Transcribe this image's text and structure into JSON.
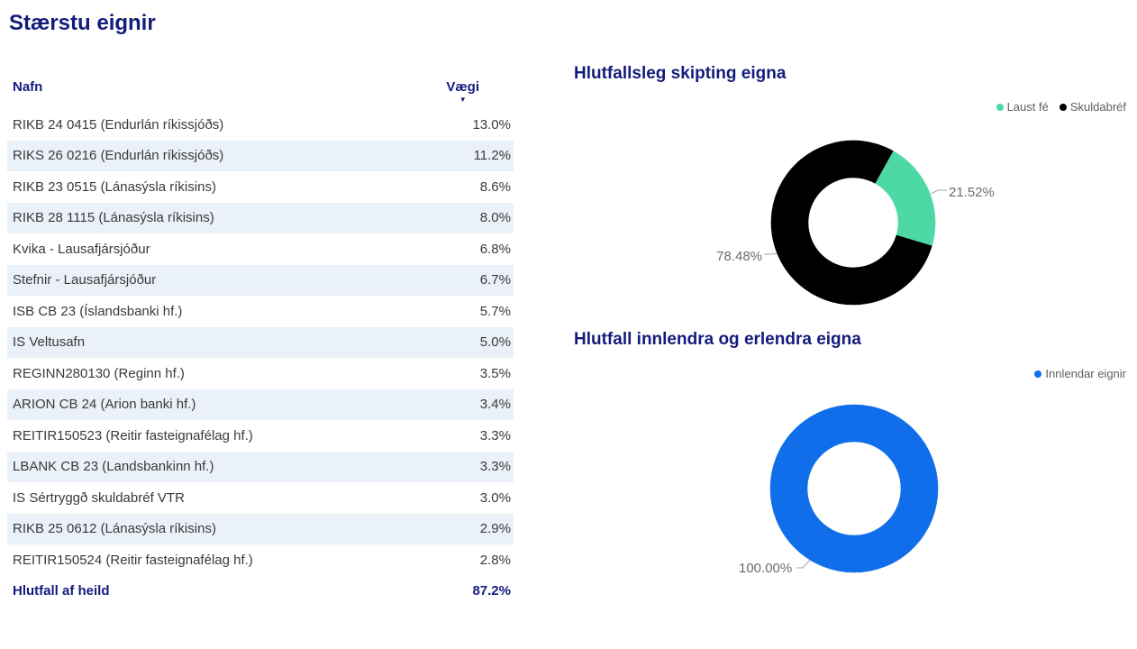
{
  "theme": {
    "navy": "#131C7B",
    "stripe": "#EAF1F9",
    "row-text": "#3B3A39",
    "label-gray": "#6B6B6B",
    "legend-gray": "#605E5C",
    "connector-gray": "#A6A6A6"
  },
  "chart_data": [
    {
      "type": "table",
      "title": "Stærstu eignir",
      "columns": [
        "Nafn",
        "Vægi"
      ],
      "sort": {
        "column": "Vægi",
        "direction": "desc",
        "glyph": "▼"
      },
      "rows": [
        {
          "name": "RIKB 24 0415 (Endurlán ríkissjóðs)",
          "weight": "13.0%"
        },
        {
          "name": "RIKS 26 0216 (Endurlán ríkissjóðs)",
          "weight": "11.2%"
        },
        {
          "name": "RIKB 23 0515 (Lánasýsla ríkisins)",
          "weight": "8.6%"
        },
        {
          "name": "RIKB 28 1115 (Lánasýsla ríkisins)",
          "weight": "8.0%"
        },
        {
          "name": "Kvika - Lausafjársjóður",
          "weight": "6.8%"
        },
        {
          "name": "Stefnir - Lausafjársjóður",
          "weight": "6.7%"
        },
        {
          "name": "ISB CB 23 (Íslandsbanki hf.)",
          "weight": "5.7%"
        },
        {
          "name": "IS Veltusafn",
          "weight": "5.0%"
        },
        {
          "name": "REGINN280130 (Reginn hf.)",
          "weight": "3.5%"
        },
        {
          "name": "ARION CB 24 (Arion banki hf.)",
          "weight": "3.4%"
        },
        {
          "name": "REITIR150523 (Reitir fasteignafélag hf.)",
          "weight": "3.3%"
        },
        {
          "name": "LBANK CB 23 (Landsbankinn hf.)",
          "weight": "3.3%"
        },
        {
          "name": "IS Sértryggð skuldabréf VTR",
          "weight": "3.0%"
        },
        {
          "name": "RIKB 25 0612 (Lánasýsla ríkisins)",
          "weight": "2.9%"
        },
        {
          "name": "REITIR150524 (Reitir fasteignafélag hf.)",
          "weight": "2.8%"
        }
      ],
      "total_row": {
        "label": "Hlutfall af heild",
        "value": "87.2%"
      }
    },
    {
      "type": "donut",
      "title": "Hlutfallsleg skipting eigna",
      "legend_position": "top-right",
      "rotation_deg": 29,
      "series": [
        {
          "name": "Laust fé",
          "value": 21.52,
          "label": "21.52%",
          "color": "#4ED8A4"
        },
        {
          "name": "Skuldabréf",
          "value": 78.48,
          "label": "78.48%",
          "color": "#000000"
        }
      ]
    },
    {
      "type": "donut",
      "title": "Hlutfall innlendra og erlendra eigna",
      "legend_position": "top-right",
      "rotation_deg": 0,
      "series": [
        {
          "name": "Innlendar eignir",
          "value": 100.0,
          "label": "100.00%",
          "color": "#106EEB"
        }
      ]
    }
  ]
}
